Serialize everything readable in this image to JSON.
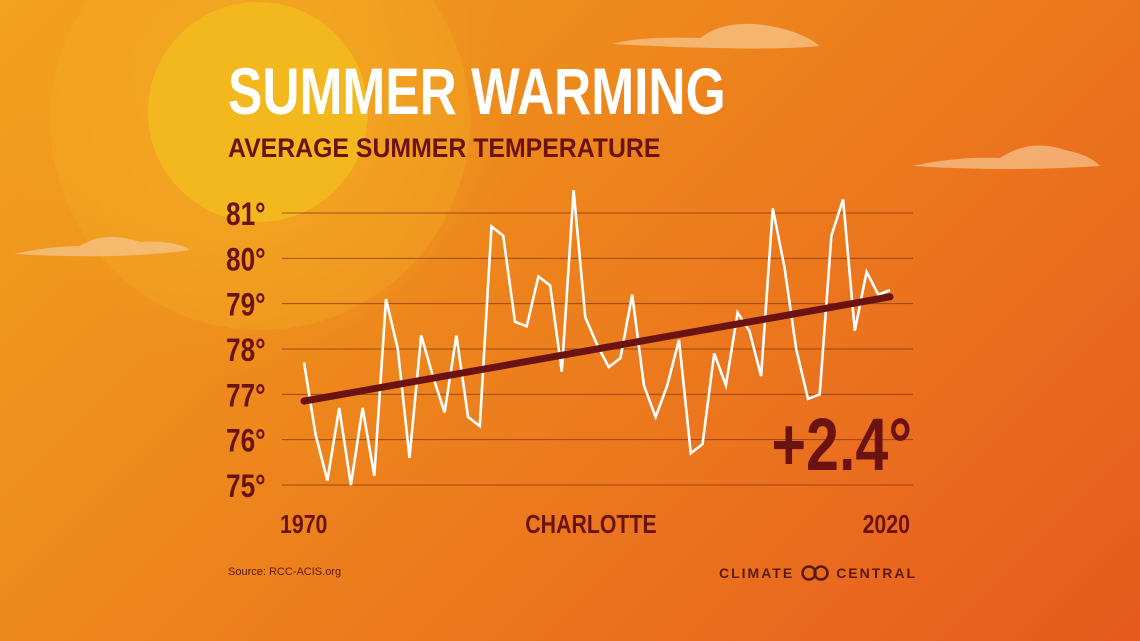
{
  "header": {
    "title": "SUMMER WARMING",
    "subtitle": "AVERAGE SUMMER TEMPERATURE"
  },
  "chart_data": {
    "type": "line",
    "title": "SUMMER WARMING",
    "subtitle": "AVERAGE SUMMER TEMPERATURE",
    "location_label": "CHARLOTTE",
    "x_tick_labels": [
      "1970",
      "2020"
    ],
    "y_tick_labels": [
      "75°",
      "76°",
      "77°",
      "78°",
      "79°",
      "80°",
      "81°"
    ],
    "y_ticks": [
      75,
      76,
      77,
      78,
      79,
      80,
      81
    ],
    "xlim": [
      1970,
      2020
    ],
    "ylim": [
      75,
      81
    ],
    "grid": true,
    "series": [
      {
        "x": [
          1970,
          1971,
          1972,
          1973,
          1974,
          1975,
          1976,
          1977,
          1978,
          1979,
          1980,
          1981,
          1982,
          1983,
          1984,
          1985,
          1986,
          1987,
          1988,
          1989,
          1990,
          1991,
          1992,
          1993,
          1994,
          1995,
          1996,
          1997,
          1998,
          1999,
          2000,
          2001,
          2002,
          2003,
          2004,
          2005,
          2006,
          2007,
          2008,
          2009,
          2010,
          2011,
          2012,
          2013,
          2014,
          2015,
          2016,
          2017,
          2018,
          2019,
          2020
        ],
        "values": [
          77.7,
          76.1,
          75.1,
          76.7,
          75.0,
          76.7,
          75.2,
          79.1,
          78.0,
          75.6,
          78.3,
          77.4,
          76.6,
          78.3,
          76.5,
          76.3,
          80.7,
          80.5,
          78.6,
          78.5,
          79.6,
          79.4,
          77.5,
          81.5,
          78.7,
          78.1,
          77.6,
          77.8,
          79.2,
          77.2,
          76.5,
          77.2,
          78.2,
          75.7,
          75.9,
          77.9,
          77.2,
          78.8,
          78.4,
          77.4,
          81.1,
          79.8,
          78.0,
          76.9,
          77.0,
          80.5,
          81.3,
          78.4,
          79.7,
          79.2,
          79.3
        ]
      },
      {
        "name": "trend",
        "x": [
          1970,
          2020
        ],
        "values": [
          76.85,
          79.15
        ]
      }
    ],
    "annotation": "+2.4°"
  },
  "footer": {
    "source": "Source: RCC-ACIS.org",
    "brand": "CLIMATE CENTRAL"
  },
  "colors": {
    "data_line": "#ffffff",
    "trend_line": "#6b1313",
    "axis_text": "#6b1313",
    "grid": "#8a3a12"
  }
}
